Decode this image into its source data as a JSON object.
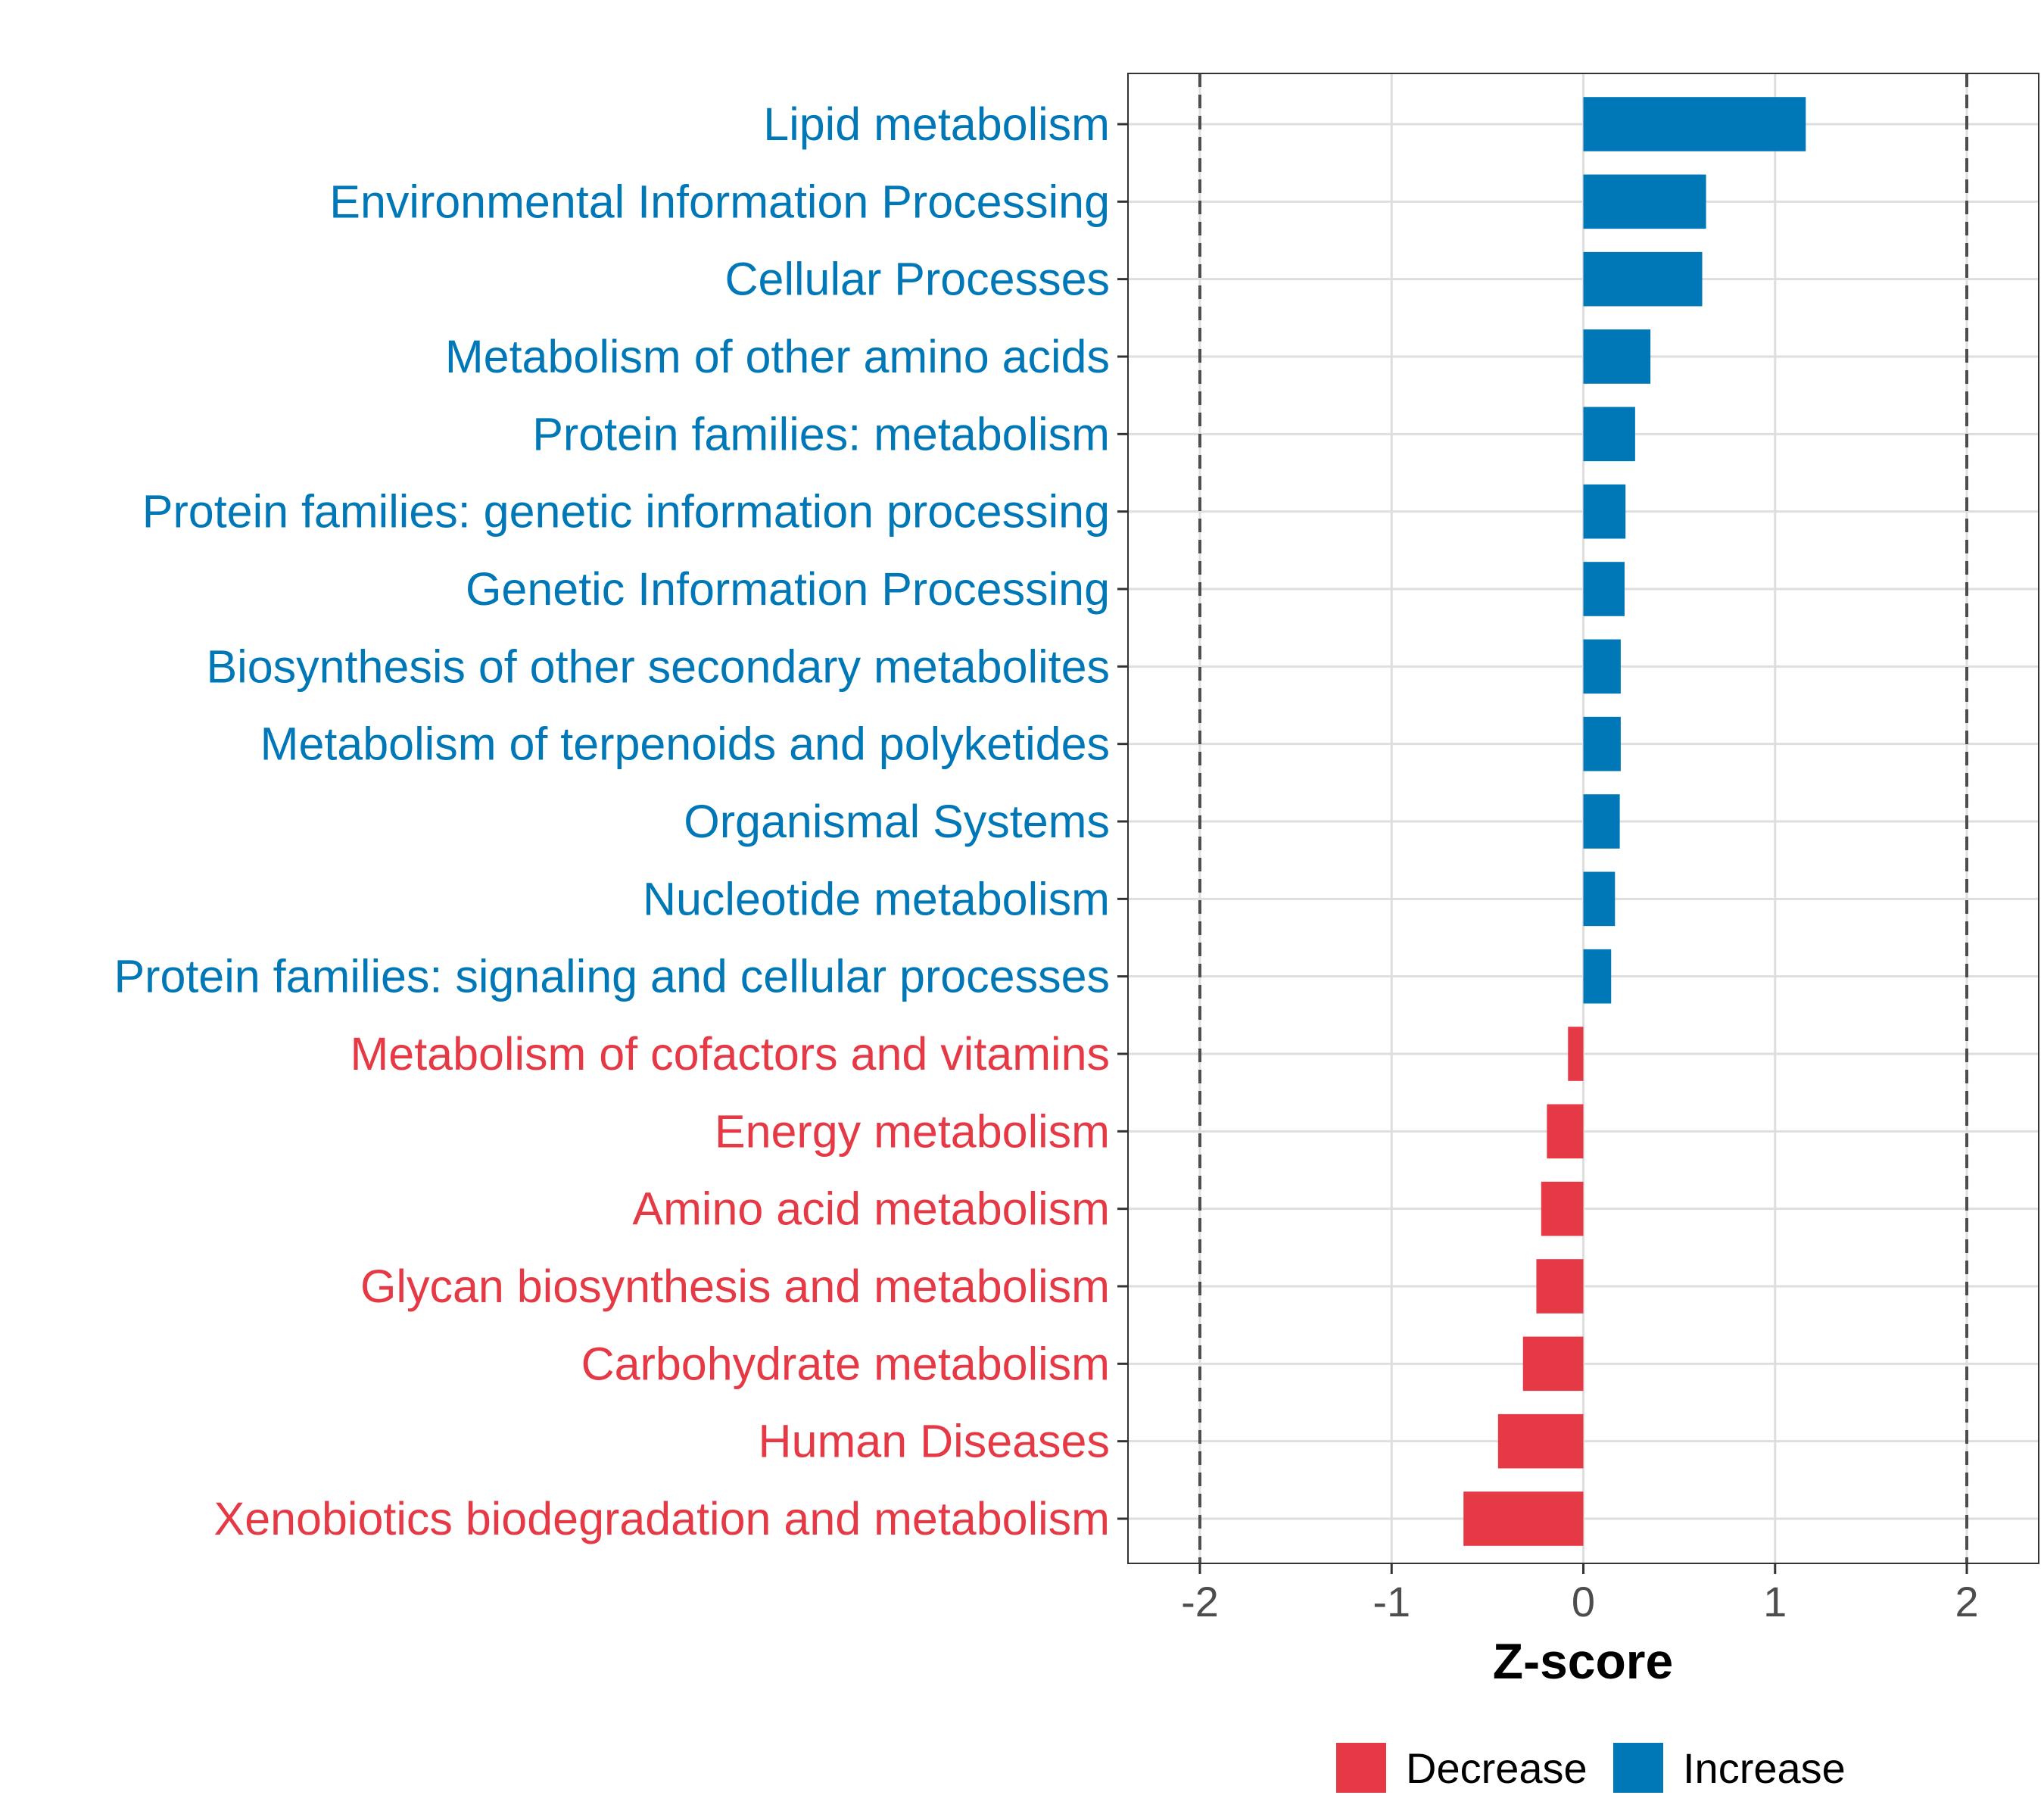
{
  "chart_data": {
    "type": "bar",
    "orientation": "horizontal",
    "categories": [
      "Lipid metabolism",
      "Environmental Information Processing",
      "Cellular Processes",
      "Metabolism of other amino acids",
      "Protein families: metabolism",
      "Protein families: genetic information processing",
      "Genetic Information Processing",
      "Biosynthesis of other secondary metabolites",
      "Metabolism of terpenoids and polyketides",
      "Organismal Systems",
      "Nucleotide metabolism",
      "Protein families: signaling and cellular processes",
      "Metabolism of cofactors and vitamins",
      "Energy metabolism",
      "Amino acid metabolism",
      "Glycan biosynthesis and metabolism",
      "Carbohydrate metabolism",
      "Human Diseases",
      "Xenobiotics biodegradation and metabolism"
    ],
    "values": [
      1.16,
      0.64,
      0.62,
      0.35,
      0.27,
      0.22,
      0.215,
      0.195,
      0.195,
      0.19,
      0.165,
      0.145,
      -0.08,
      -0.19,
      -0.22,
      -0.245,
      -0.315,
      -0.445,
      -0.625
    ],
    "groups": [
      "Increase",
      "Increase",
      "Increase",
      "Increase",
      "Increase",
      "Increase",
      "Increase",
      "Increase",
      "Increase",
      "Increase",
      "Increase",
      "Increase",
      "Decrease",
      "Decrease",
      "Decrease",
      "Decrease",
      "Decrease",
      "Decrease",
      "Decrease"
    ],
    "xlabel": "Z-score",
    "ylabel": "",
    "xlim": [
      -2.375,
      2.375
    ],
    "xticks": [
      -2,
      -1,
      0,
      1,
      2
    ],
    "xtick_labels": [
      "-2",
      "-1",
      "0",
      "1",
      "2"
    ],
    "reference_lines": [
      -2,
      2
    ],
    "grid": true,
    "legend": {
      "position": "bottom",
      "entries": [
        {
          "label": "Decrease",
          "color": "#E63946"
        },
        {
          "label": "Increase",
          "color": "#0077B6"
        }
      ]
    },
    "colors": {
      "Decrease": "#E63946",
      "Increase": "#0077B6"
    }
  }
}
